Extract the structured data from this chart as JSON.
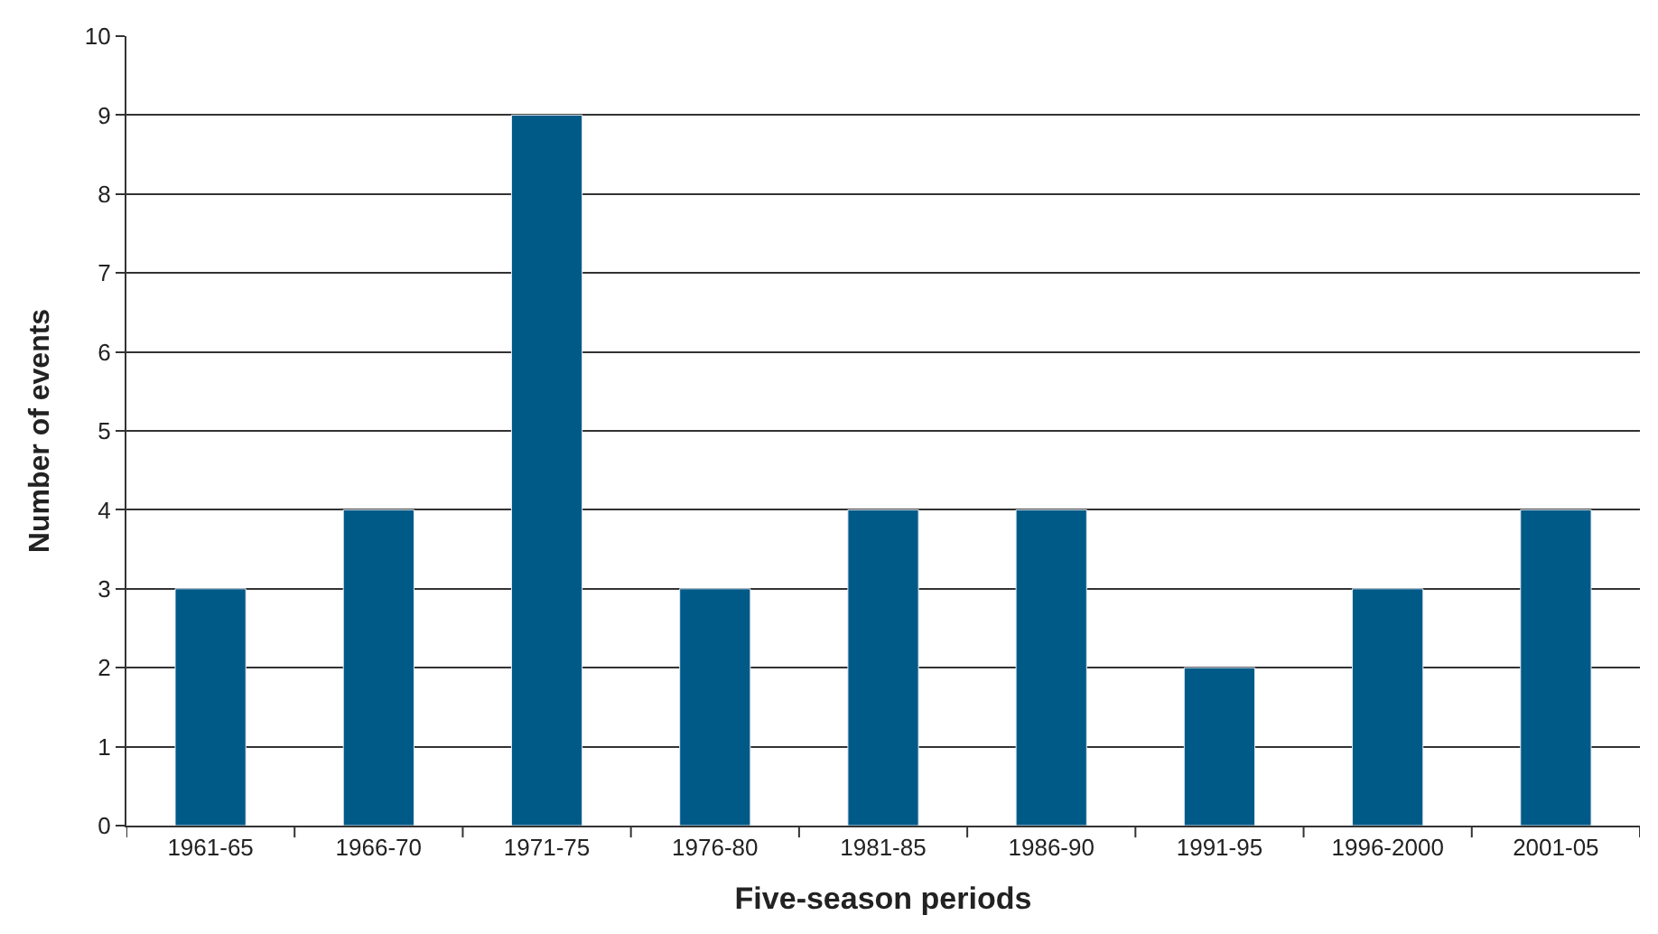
{
  "chart_data": {
    "type": "bar",
    "xlabel": "Five-season periods",
    "ylabel": "Number of events",
    "categories": [
      "1961-65",
      "1966-70",
      "1971-75",
      "1976-80",
      "1981-85",
      "1986-90",
      "1991-95",
      "1996-2000",
      "2001-05"
    ],
    "values": [
      3,
      4,
      9,
      3,
      4,
      4,
      2,
      3,
      4
    ],
    "color": "#005a87",
    "ylim": [
      0,
      10
    ],
    "yticks": [
      0,
      1,
      2,
      3,
      4,
      5,
      6,
      7,
      8,
      9,
      10
    ],
    "grid": "y",
    "legend": false
  }
}
